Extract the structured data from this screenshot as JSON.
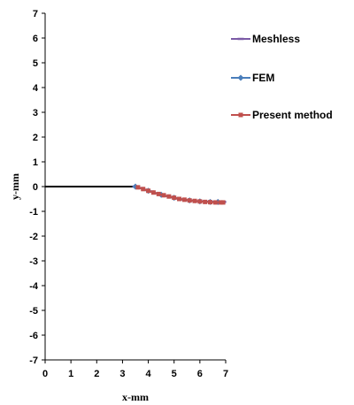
{
  "chart_data": {
    "type": "line",
    "xlabel": "x-mm",
    "ylabel": "y-mm",
    "xlim": [
      0,
      7
    ],
    "ylim": [
      -7,
      7
    ],
    "x_ticks": [
      0,
      1,
      2,
      3,
      4,
      5,
      6,
      7
    ],
    "y_ticks": [
      7,
      6,
      5,
      4,
      3,
      2,
      1,
      0,
      -1,
      -2,
      -3,
      -4,
      -5,
      -6,
      -7
    ],
    "grid": false,
    "legend_position": "right",
    "reference_line": {
      "x": [
        0,
        3.5
      ],
      "y": [
        0,
        0
      ],
      "color": "#000000"
    },
    "series": [
      {
        "name": "Meshless",
        "color": "#7B5AA6",
        "marker": "dash",
        "x": [
          3.5,
          3.7,
          3.9,
          4.1,
          4.3,
          4.5,
          4.7,
          4.9,
          5.1,
          5.3,
          5.5,
          5.7,
          5.9,
          6.1,
          6.3,
          6.5,
          6.7,
          6.9
        ],
        "y": [
          0.0,
          -0.06,
          -0.13,
          -0.2,
          -0.27,
          -0.33,
          -0.38,
          -0.43,
          -0.48,
          -0.52,
          -0.55,
          -0.57,
          -0.59,
          -0.6,
          -0.61,
          -0.62,
          -0.62,
          -0.62
        ]
      },
      {
        "name": "FEM",
        "color": "#4A7EBB",
        "marker": "diamond",
        "x": [
          3.5,
          4.0,
          4.5,
          5.0,
          5.6,
          6.0,
          6.4,
          6.7
        ],
        "y": [
          0.0,
          -0.17,
          -0.33,
          -0.45,
          -0.56,
          -0.6,
          -0.62,
          -0.62
        ]
      },
      {
        "name": "Present method",
        "color": "#C0504D",
        "marker": "square",
        "x": [
          3.6,
          3.8,
          4.0,
          4.2,
          4.4,
          4.6,
          4.8,
          5.0,
          5.2,
          5.4,
          5.6,
          5.8,
          6.0,
          6.2,
          6.4,
          6.6,
          6.8,
          6.9
        ],
        "y": [
          -0.03,
          -0.1,
          -0.17,
          -0.24,
          -0.3,
          -0.35,
          -0.4,
          -0.45,
          -0.5,
          -0.53,
          -0.56,
          -0.58,
          -0.6,
          -0.62,
          -0.63,
          -0.64,
          -0.64,
          -0.64
        ]
      }
    ]
  }
}
